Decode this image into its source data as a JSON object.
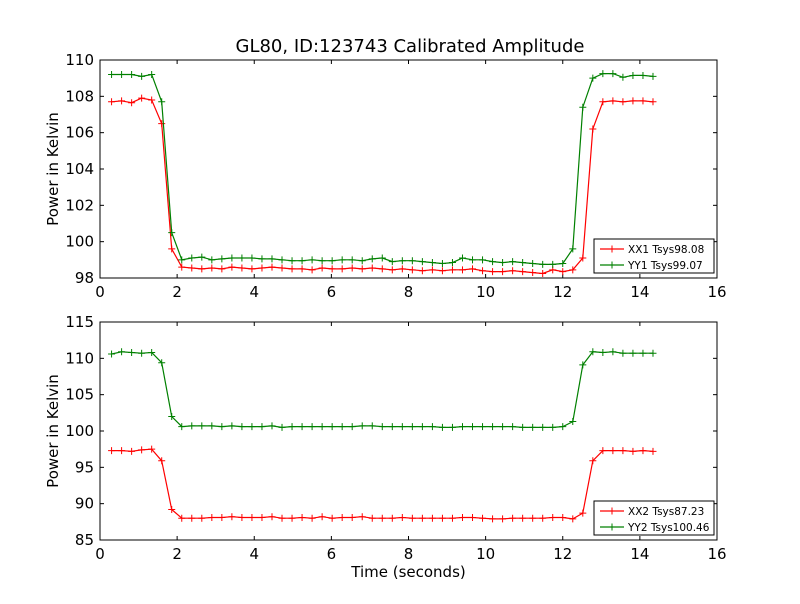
{
  "title": "GL80, ID:123743 Calibrated Amplitude",
  "chart_data": [
    {
      "type": "line",
      "title": "GL80, ID:123743 Calibrated Amplitude",
      "xlabel": "",
      "ylabel": "Power in Kelvin",
      "xlim": [
        0,
        16
      ],
      "ylim": [
        98,
        110
      ],
      "xticks": [
        0,
        2,
        4,
        6,
        8,
        10,
        12,
        14,
        16
      ],
      "yticks": [
        98,
        100,
        102,
        104,
        106,
        108,
        110
      ],
      "legend_position": "lower-right",
      "grid": false,
      "x": [
        0.3,
        0.56,
        0.82,
        1.08,
        1.34,
        1.6,
        1.86,
        2.12,
        2.38,
        2.64,
        2.9,
        3.16,
        3.42,
        3.68,
        3.94,
        4.2,
        4.46,
        4.72,
        4.98,
        5.24,
        5.5,
        5.76,
        6.02,
        6.28,
        6.54,
        6.8,
        7.06,
        7.32,
        7.58,
        7.84,
        8.1,
        8.36,
        8.62,
        8.88,
        9.14,
        9.4,
        9.66,
        9.92,
        10.18,
        10.44,
        10.7,
        10.96,
        11.22,
        11.48,
        11.74,
        12.0,
        12.26,
        12.52,
        12.78,
        13.04,
        13.3,
        13.56,
        13.82,
        14.08,
        14.34
      ],
      "series": [
        {
          "name": "XX1 Tsys98.08",
          "color": "#ff0000",
          "values": [
            107.7,
            107.75,
            107.65,
            107.9,
            107.8,
            106.5,
            99.6,
            98.6,
            98.55,
            98.5,
            98.55,
            98.5,
            98.6,
            98.55,
            98.5,
            98.55,
            98.6,
            98.55,
            98.5,
            98.5,
            98.45,
            98.55,
            98.5,
            98.5,
            98.55,
            98.5,
            98.55,
            98.5,
            98.45,
            98.5,
            98.45,
            98.4,
            98.45,
            98.4,
            98.45,
            98.45,
            98.5,
            98.4,
            98.35,
            98.35,
            98.4,
            98.35,
            98.3,
            98.25,
            98.45,
            98.35,
            98.45,
            99.1,
            106.2,
            107.7,
            107.75,
            107.7,
            107.75,
            107.75,
            107.7
          ]
        },
        {
          "name": "YY1 Tsys99.07",
          "color": "#008000",
          "values": [
            109.2,
            109.2,
            109.2,
            109.1,
            109.2,
            107.7,
            100.5,
            99.0,
            99.1,
            99.15,
            99.0,
            99.05,
            99.1,
            99.1,
            99.1,
            99.05,
            99.05,
            99.0,
            98.95,
            98.95,
            99.0,
            98.95,
            98.95,
            99.0,
            99.0,
            98.95,
            99.05,
            99.1,
            98.9,
            98.95,
            98.95,
            98.9,
            98.85,
            98.8,
            98.85,
            99.1,
            99.0,
            99.0,
            98.9,
            98.85,
            98.9,
            98.85,
            98.8,
            98.75,
            98.75,
            98.8,
            99.6,
            107.4,
            109.0,
            109.25,
            109.25,
            109.05,
            109.15,
            109.15,
            109.1
          ]
        }
      ]
    },
    {
      "type": "line",
      "title": "",
      "xlabel": "Time (seconds)",
      "ylabel": "Power in Kelvin",
      "xlim": [
        0,
        16
      ],
      "ylim": [
        85,
        115
      ],
      "xticks": [
        0,
        2,
        4,
        6,
        8,
        10,
        12,
        14,
        16
      ],
      "yticks": [
        85,
        90,
        95,
        100,
        105,
        110,
        115
      ],
      "legend_position": "lower-right",
      "grid": false,
      "x": [
        0.3,
        0.56,
        0.82,
        1.08,
        1.34,
        1.6,
        1.86,
        2.12,
        2.38,
        2.64,
        2.9,
        3.16,
        3.42,
        3.68,
        3.94,
        4.2,
        4.46,
        4.72,
        4.98,
        5.24,
        5.5,
        5.76,
        6.02,
        6.28,
        6.54,
        6.8,
        7.06,
        7.32,
        7.58,
        7.84,
        8.1,
        8.36,
        8.62,
        8.88,
        9.14,
        9.4,
        9.66,
        9.92,
        10.18,
        10.44,
        10.7,
        10.96,
        11.22,
        11.48,
        11.74,
        12.0,
        12.26,
        12.52,
        12.78,
        13.04,
        13.3,
        13.56,
        13.82,
        14.08,
        14.34
      ],
      "series": [
        {
          "name": "XX2 Tsys87.23",
          "color": "#ff0000",
          "values": [
            97.3,
            97.3,
            97.2,
            97.4,
            97.5,
            95.9,
            89.2,
            88.0,
            88.0,
            88.0,
            88.1,
            88.1,
            88.2,
            88.1,
            88.1,
            88.1,
            88.2,
            88.0,
            88.0,
            88.1,
            88.0,
            88.2,
            88.0,
            88.1,
            88.1,
            88.2,
            88.0,
            88.0,
            88.0,
            88.1,
            88.0,
            88.0,
            88.0,
            88.0,
            88.0,
            88.1,
            88.1,
            88.0,
            87.9,
            87.9,
            88.0,
            88.0,
            88.0,
            88.0,
            88.1,
            88.1,
            87.9,
            88.7,
            95.9,
            97.3,
            97.3,
            97.3,
            97.2,
            97.3,
            97.2
          ]
        },
        {
          "name": "YY2 Tsys100.46",
          "color": "#008000",
          "values": [
            110.6,
            110.9,
            110.8,
            110.7,
            110.8,
            109.4,
            102.0,
            100.6,
            100.7,
            100.7,
            100.7,
            100.6,
            100.7,
            100.6,
            100.6,
            100.6,
            100.7,
            100.5,
            100.6,
            100.6,
            100.6,
            100.6,
            100.6,
            100.6,
            100.6,
            100.7,
            100.7,
            100.6,
            100.6,
            100.6,
            100.6,
            100.6,
            100.6,
            100.5,
            100.5,
            100.6,
            100.6,
            100.6,
            100.6,
            100.6,
            100.6,
            100.5,
            100.5,
            100.5,
            100.5,
            100.6,
            101.3,
            109.1,
            110.9,
            110.8,
            110.9,
            110.7,
            110.7,
            110.7,
            110.7
          ]
        }
      ]
    }
  ]
}
